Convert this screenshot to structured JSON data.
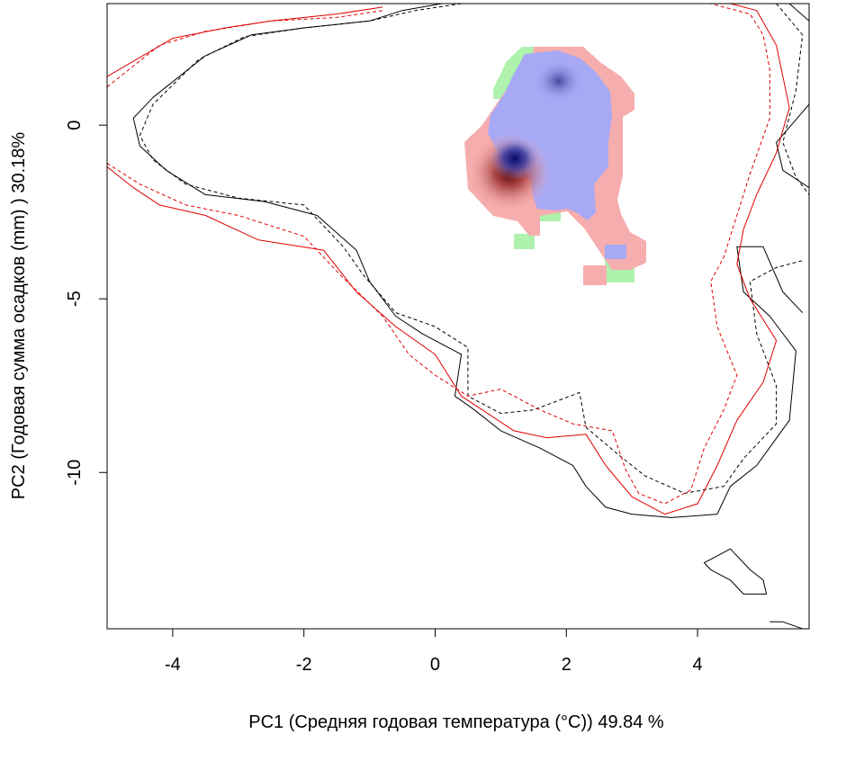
{
  "chart_data": {
    "type": "heatmap",
    "xlabel": "PC1 (Средняя годовая температура (°C)) 49.84 %",
    "ylabel": "PC2 (Годовая сумма осадков  (mm) ) 30.18%",
    "xlim": [
      -5,
      5.7
    ],
    "ylim": [
      -14.5,
      3.5
    ],
    "x_ticks": [
      "-4",
      "-2",
      "0",
      "2",
      "4"
    ],
    "x_tick_values": [
      -4,
      -2,
      0,
      2,
      4
    ],
    "y_ticks": [
      "0",
      "-5",
      "-10"
    ],
    "y_tick_values": [
      0,
      -5,
      -10
    ],
    "grid": false,
    "colors": {
      "overlap_blue": "#a7a9f5",
      "only_red": "#f6adad",
      "only_green": "#aef2ae",
      "contour_red": "#e00000",
      "contour_black": "#000000"
    },
    "density_peaks": [
      {
        "x": 1.25,
        "y": -1.35,
        "color": "#6a0000"
      },
      {
        "x": 1.25,
        "y": -1.0,
        "color": "#0a0f6e"
      },
      {
        "x": 1.95,
        "y": 1.3,
        "color": "#3a3f96"
      }
    ],
    "contours": [
      {
        "color": "#000000",
        "dash": false,
        "points": [
          [
            0.1,
            3.5
          ],
          [
            -0.5,
            3.3
          ],
          [
            -1,
            3.0
          ],
          [
            -2,
            2.8
          ],
          [
            -2.8,
            2.6
          ],
          [
            -3.5,
            2.0
          ],
          [
            -4.3,
            0.8
          ],
          [
            -4.6,
            0.2
          ],
          [
            -4.5,
            -0.6
          ],
          [
            -4.1,
            -1.3
          ],
          [
            -3.5,
            -2.0
          ],
          [
            -2.6,
            -2.2
          ],
          [
            -1.8,
            -2.6
          ],
          [
            -1.2,
            -3.6
          ],
          [
            -1.0,
            -4.5
          ],
          [
            -0.6,
            -5.5
          ],
          [
            -0.2,
            -6.0
          ],
          [
            0.4,
            -6.6
          ],
          [
            0.3,
            -7.8
          ],
          [
            0.6,
            -8.2
          ],
          [
            1.0,
            -8.8
          ],
          [
            1.6,
            -9.3
          ],
          [
            2.1,
            -9.8
          ],
          [
            2.3,
            -10.4
          ],
          [
            2.6,
            -11.0
          ],
          [
            3.0,
            -11.2
          ],
          [
            3.6,
            -11.3
          ],
          [
            4.3,
            -11.2
          ],
          [
            4.5,
            -10.4
          ],
          [
            4.9,
            -9.8
          ],
          [
            5.4,
            -8.5
          ],
          [
            5.5,
            -6.5
          ],
          [
            5.1,
            -5.5
          ],
          [
            4.7,
            -4.8
          ],
          [
            4.6,
            -3.5
          ],
          [
            5.0,
            -3.5
          ],
          [
            5.3,
            -4.8
          ],
          [
            5.6,
            -5.4
          ]
        ]
      },
      {
        "color": "#000000",
        "dash": true,
        "points": [
          [
            0.4,
            3.5
          ],
          [
            -0.3,
            3.3
          ],
          [
            -1,
            3.0
          ],
          [
            -2,
            2.8
          ],
          [
            -2.9,
            2.55
          ],
          [
            -3.6,
            1.9
          ],
          [
            -4.3,
            0.6
          ],
          [
            -4.5,
            -0.3
          ],
          [
            -4.3,
            -1.0
          ],
          [
            -3.8,
            -1.7
          ],
          [
            -3.0,
            -2.1
          ],
          [
            -2.0,
            -2.3
          ],
          [
            -1.4,
            -3.5
          ],
          [
            -1.1,
            -4.3
          ],
          [
            -0.6,
            -5.4
          ],
          [
            0,
            -5.8
          ],
          [
            0.5,
            -6.4
          ],
          [
            0.5,
            -7.8
          ],
          [
            1.0,
            -8.3
          ],
          [
            1.5,
            -8.2
          ],
          [
            2.2,
            -7.7
          ],
          [
            2.3,
            -8.7
          ],
          [
            2.8,
            -9.5
          ],
          [
            3.2,
            -10.1
          ],
          [
            3.8,
            -10.6
          ],
          [
            4.4,
            -10.4
          ],
          [
            4.7,
            -9.6
          ],
          [
            5.2,
            -8.6
          ],
          [
            5.2,
            -7.5
          ],
          [
            4.9,
            -6.0
          ],
          [
            4.8,
            -4.5
          ],
          [
            5.2,
            -4.1
          ],
          [
            5.6,
            -3.9
          ]
        ]
      },
      {
        "color": "#000000",
        "dash": true,
        "points": [
          [
            5.2,
            3.5
          ],
          [
            5.6,
            2.6
          ],
          [
            5.5,
            1.0
          ],
          [
            5.3,
            -0.5
          ],
          [
            5.5,
            -1.5
          ],
          [
            5.7,
            -2.0
          ]
        ]
      },
      {
        "color": "#000000",
        "dash": false,
        "points": [
          [
            5.4,
            3.5
          ],
          [
            5.7,
            3.0
          ]
        ]
      },
      {
        "color": "#000000",
        "dash": false,
        "points": [
          [
            5.7,
            0.6
          ],
          [
            5.2,
            -0.5
          ],
          [
            5.3,
            -1.3
          ],
          [
            5.7,
            -1.8
          ]
        ]
      },
      {
        "color": "#000000",
        "dash": false,
        "points": [
          [
            4.2,
            -12.5
          ],
          [
            4.5,
            -12.2
          ],
          [
            4.8,
            -12.8
          ],
          [
            5.0,
            -13.1
          ],
          [
            5.05,
            -13.5
          ],
          [
            4.7,
            -13.5
          ],
          [
            4.5,
            -13.1
          ],
          [
            4.2,
            -12.8
          ],
          [
            4.1,
            -12.6
          ],
          [
            4.2,
            -12.5
          ]
        ]
      },
      {
        "color": "#000000",
        "dash": false,
        "points": [
          [
            5.1,
            -14.3
          ],
          [
            5.3,
            -14.3
          ],
          [
            5.6,
            -14.5
          ]
        ]
      },
      {
        "color": "#e00000",
        "dash": false,
        "points": [
          [
            -0.8,
            3.4
          ],
          [
            -1.5,
            3.2
          ],
          [
            -2.5,
            3.0
          ],
          [
            -3.2,
            2.8
          ],
          [
            -4.0,
            2.5
          ],
          [
            -5.0,
            1.4
          ]
        ]
      },
      {
        "color": "#e00000",
        "dash": false,
        "points": [
          [
            -5.0,
            -1.2
          ],
          [
            -4.6,
            -1.8
          ],
          [
            -4.2,
            -2.3
          ],
          [
            -3.5,
            -2.6
          ],
          [
            -2.7,
            -3.3
          ],
          [
            -1.7,
            -3.6
          ],
          [
            -1.2,
            -4.8
          ],
          [
            -0.6,
            -5.8
          ],
          [
            0,
            -6.6
          ],
          [
            0.4,
            -7.8
          ],
          [
            0.8,
            -8.3
          ],
          [
            1.2,
            -8.8
          ],
          [
            1.7,
            -9.0
          ],
          [
            2.3,
            -8.9
          ],
          [
            2.6,
            -9.8
          ],
          [
            3.0,
            -10.7
          ],
          [
            3.5,
            -11.2
          ],
          [
            4.0,
            -10.9
          ],
          [
            4.3,
            -9.8
          ],
          [
            4.6,
            -8.5
          ],
          [
            5.0,
            -7.4
          ],
          [
            5.2,
            -6.2
          ],
          [
            4.8,
            -5.0
          ],
          [
            4.6,
            -4.0
          ],
          [
            4.7,
            -3.0
          ],
          [
            4.9,
            -2.0
          ],
          [
            5.2,
            -0.8
          ],
          [
            5.4,
            0.5
          ],
          [
            5.2,
            2.3
          ],
          [
            4.9,
            3.3
          ],
          [
            4.5,
            3.5
          ]
        ]
      },
      {
        "color": "#e00000",
        "dash": true,
        "points": [
          [
            -5.0,
            1.1
          ],
          [
            -4.2,
            2.3
          ],
          [
            -3.5,
            2.7
          ],
          [
            -2.5,
            3.0
          ],
          [
            -1.5,
            3.1
          ],
          [
            -0.8,
            3.3
          ]
        ]
      },
      {
        "color": "#e00000",
        "dash": true,
        "points": [
          [
            -5.0,
            -1.1
          ],
          [
            -4.5,
            -1.7
          ],
          [
            -3.8,
            -2.3
          ],
          [
            -3.0,
            -2.6
          ],
          [
            -2.0,
            -3.2
          ],
          [
            -1.4,
            -4.4
          ],
          [
            -0.8,
            -5.5
          ],
          [
            -0.4,
            -6.6
          ],
          [
            0.0,
            -7.2
          ],
          [
            0.5,
            -7.8
          ],
          [
            1.0,
            -7.6
          ],
          [
            1.6,
            -8.2
          ],
          [
            2.1,
            -8.6
          ],
          [
            2.7,
            -8.8
          ],
          [
            2.9,
            -9.9
          ],
          [
            3.1,
            -10.6
          ],
          [
            3.5,
            -10.9
          ],
          [
            3.9,
            -10.5
          ],
          [
            4.1,
            -9.3
          ],
          [
            4.4,
            -8.2
          ],
          [
            4.6,
            -7.2
          ],
          [
            4.3,
            -5.8
          ],
          [
            4.2,
            -4.5
          ],
          [
            4.4,
            -3.8
          ],
          [
            4.6,
            -2.6
          ],
          [
            4.8,
            -1.4
          ],
          [
            5.1,
            0.2
          ],
          [
            5.1,
            1.6
          ],
          [
            5.0,
            2.6
          ],
          [
            4.8,
            3.2
          ],
          [
            4.2,
            3.5
          ]
        ]
      }
    ]
  }
}
